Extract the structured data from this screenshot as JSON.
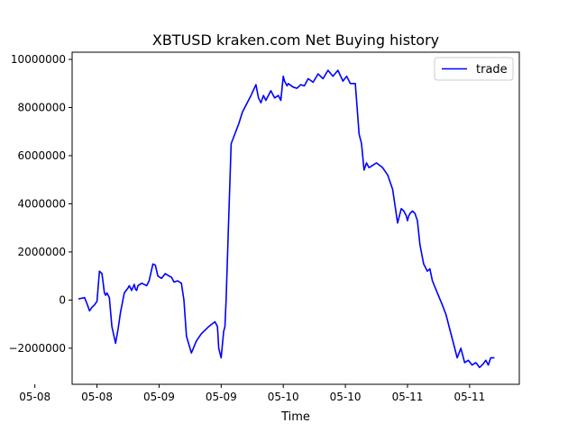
{
  "chart_data": {
    "type": "line",
    "title": "XBTUSD kraken.com Net Buying history",
    "xlabel": "Time",
    "ylabel": "",
    "x_unit": "day of May",
    "xlim": [
      8.3,
      11.9
    ],
    "ylim": [
      -3500000,
      10300000
    ],
    "x_ticks": [
      {
        "value": 8.0,
        "label": "05-08"
      },
      {
        "value": 8.5,
        "label": "05-08"
      },
      {
        "value": 9.0,
        "label": "05-09"
      },
      {
        "value": 9.5,
        "label": "05-09"
      },
      {
        "value": 10.0,
        "label": "05-10"
      },
      {
        "value": 10.5,
        "label": "05-10"
      },
      {
        "value": 11.0,
        "label": "05-11"
      },
      {
        "value": 11.5,
        "label": "05-11"
      }
    ],
    "y_ticks": [
      {
        "value": -2000000,
        "label": "−2000000"
      },
      {
        "value": 0,
        "label": "0"
      },
      {
        "value": 2000000,
        "label": "2000000"
      },
      {
        "value": 4000000,
        "label": "4000000"
      },
      {
        "value": 6000000,
        "label": "6000000"
      },
      {
        "value": 8000000,
        "label": "8000000"
      },
      {
        "value": 10000000,
        "label": "10000000"
      }
    ],
    "grid": false,
    "legend": {
      "position": "top-right"
    },
    "series": [
      {
        "name": "trade",
        "color": "#0000ff",
        "x": [
          8.35,
          8.4,
          8.42,
          8.44,
          8.46,
          8.48,
          8.5,
          8.52,
          8.54,
          8.56,
          8.57,
          8.58,
          8.6,
          8.62,
          8.65,
          8.67,
          8.69,
          8.72,
          8.75,
          8.76,
          8.78,
          8.8,
          8.81,
          8.82,
          8.83,
          8.86,
          8.9,
          8.92,
          8.95,
          8.97,
          8.99,
          9.02,
          9.05,
          9.08,
          9.1,
          9.12,
          9.15,
          9.18,
          9.2,
          9.22,
          9.26,
          9.3,
          9.34,
          9.4,
          9.45,
          9.47,
          9.48,
          9.5,
          9.52,
          9.53,
          9.54,
          9.56,
          9.58,
          9.61,
          9.64,
          9.67,
          9.7,
          9.74,
          9.78,
          9.8,
          9.82,
          9.84,
          9.86,
          9.88,
          9.9,
          9.93,
          9.96,
          9.98,
          10.0,
          10.01,
          10.02,
          10.03,
          10.04,
          10.08,
          10.11,
          10.14,
          10.17,
          10.2,
          10.24,
          10.28,
          10.32,
          10.36,
          10.4,
          10.44,
          10.48,
          10.51,
          10.54,
          10.58,
          10.61,
          10.63,
          10.65,
          10.67,
          10.69,
          10.72,
          10.75,
          10.8,
          10.84,
          10.88,
          10.92,
          10.95,
          10.97,
          10.99,
          11.0,
          11.01,
          11.02,
          11.04,
          11.06,
          11.08,
          11.1,
          11.13,
          11.16,
          11.18,
          11.2,
          11.24,
          11.28,
          11.31,
          11.34,
          11.37,
          11.4,
          11.43,
          11.46,
          11.49,
          11.52,
          11.55,
          11.58,
          11.61,
          11.63,
          11.65,
          11.67,
          11.7
        ],
        "y": [
          50000,
          100000,
          -150000,
          -450000,
          -300000,
          -200000,
          -50000,
          1200000,
          1100000,
          300000,
          200000,
          300000,
          100000,
          -1100000,
          -1800000,
          -1200000,
          -500000,
          300000,
          500000,
          600000,
          400000,
          650000,
          450000,
          400000,
          600000,
          700000,
          600000,
          800000,
          1500000,
          1450000,
          1000000,
          900000,
          1100000,
          1000000,
          950000,
          750000,
          800000,
          700000,
          0,
          -1500000,
          -2200000,
          -1700000,
          -1400000,
          -1100000,
          -900000,
          -1100000,
          -2000000,
          -2400000,
          -1300000,
          -1100000,
          0,
          3300000,
          6500000,
          6900000,
          7300000,
          7800000,
          8100000,
          8500000,
          8950000,
          8400000,
          8200000,
          8500000,
          8300000,
          8500000,
          8700000,
          8400000,
          8500000,
          8300000,
          9300000,
          9100000,
          9000000,
          8900000,
          9000000,
          8850000,
          8800000,
          8950000,
          8900000,
          9200000,
          9050000,
          9400000,
          9200000,
          9550000,
          9300000,
          9550000,
          9100000,
          9300000,
          9000000,
          9000000,
          6900000,
          6500000,
          5400000,
          5700000,
          5500000,
          5600000,
          5700000,
          5500000,
          5200000,
          4600000,
          3200000,
          3800000,
          3700000,
          3500000,
          3300000,
          3500000,
          3600000,
          3700000,
          3600000,
          3300000,
          2300000,
          1500000,
          1200000,
          1300000,
          800000,
          300000,
          -200000,
          -600000,
          -1200000,
          -1800000,
          -2400000,
          -2000000,
          -2600000,
          -2500000,
          -2700000,
          -2600000,
          -2800000,
          -2650000,
          -2500000,
          -2700000,
          -2400000,
          -2400000
        ]
      }
    ]
  }
}
